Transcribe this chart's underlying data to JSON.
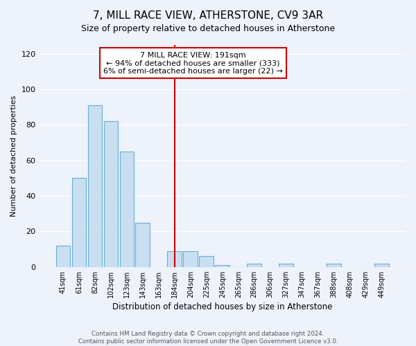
{
  "title": "7, MILL RACE VIEW, ATHERSTONE, CV9 3AR",
  "subtitle": "Size of property relative to detached houses in Atherstone",
  "xlabel": "Distribution of detached houses by size in Atherstone",
  "ylabel": "Number of detached properties",
  "bar_labels": [
    "41sqm",
    "61sqm",
    "82sqm",
    "102sqm",
    "123sqm",
    "143sqm",
    "163sqm",
    "184sqm",
    "204sqm",
    "225sqm",
    "245sqm",
    "265sqm",
    "286sqm",
    "306sqm",
    "327sqm",
    "347sqm",
    "367sqm",
    "388sqm",
    "408sqm",
    "429sqm",
    "449sqm"
  ],
  "bar_values": [
    12,
    50,
    91,
    82,
    65,
    25,
    0,
    9,
    9,
    6,
    1,
    0,
    2,
    0,
    2,
    0,
    0,
    2,
    0,
    0,
    2
  ],
  "bar_color": "#c8dff0",
  "bar_edge_color": "#6aaed6",
  "vline_idx": 7,
  "vline_color": "#cc0000",
  "ylim": [
    0,
    125
  ],
  "yticks": [
    0,
    20,
    40,
    60,
    80,
    100,
    120
  ],
  "annotation_title": "7 MILL RACE VIEW: 191sqm",
  "annotation_line1": "← 94% of detached houses are smaller (333)",
  "annotation_line2": "6% of semi-detached houses are larger (22) →",
  "annotation_box_color": "#ffffff",
  "annotation_box_edge": "#cc0000",
  "footer_line1": "Contains HM Land Registry data © Crown copyright and database right 2024.",
  "footer_line2": "Contains public sector information licensed under the Open Government Licence v3.0.",
  "bg_color": "#eef2fa"
}
